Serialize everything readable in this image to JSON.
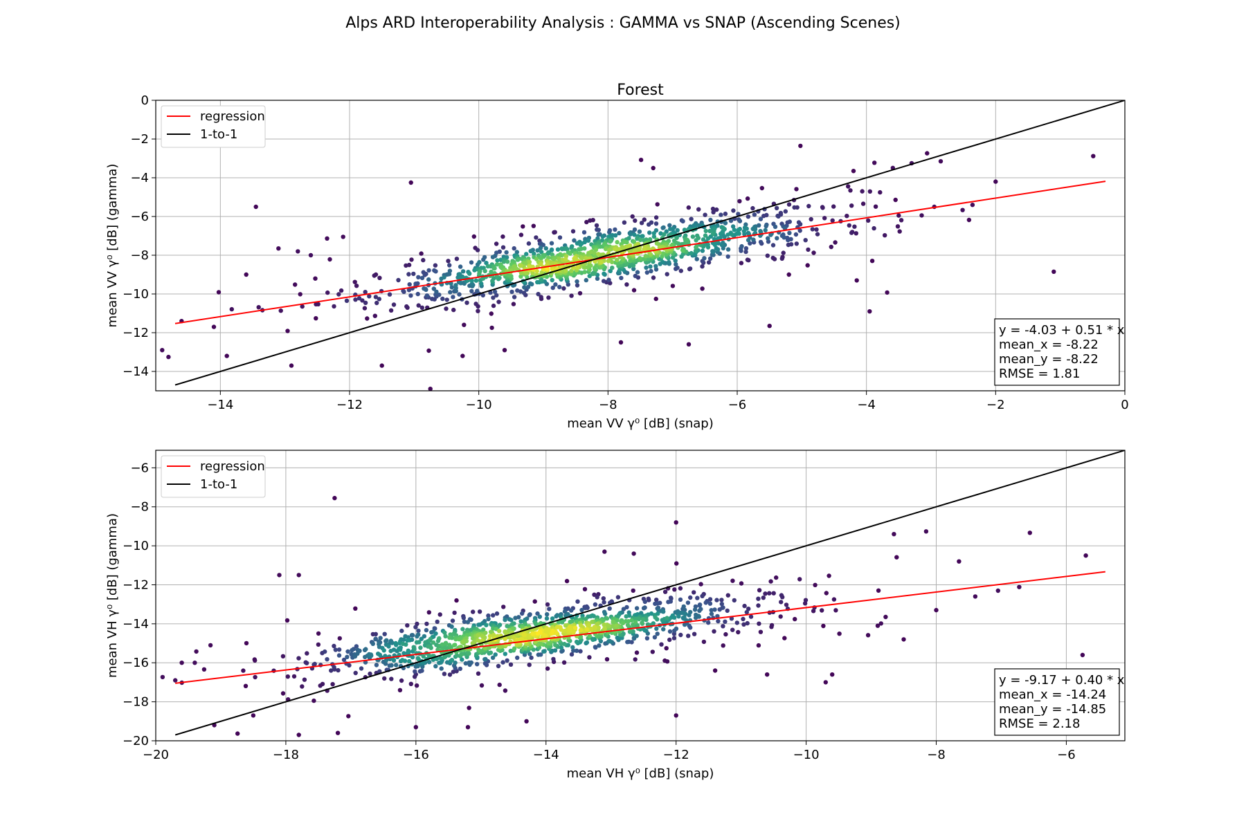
{
  "figure": {
    "title": "Alps ARD Interoperability Analysis : GAMMA vs SNAP (Ascending Scenes)"
  },
  "chart_data": [
    {
      "type": "scatter",
      "title": "Forest",
      "xlabel": "mean VV γ⁰ [dB] (snap)",
      "ylabel": "mean VV γ⁰ [dB] (gamma)",
      "xlim": [
        -15,
        0
      ],
      "ylim": [
        -15,
        0
      ],
      "xticks": [
        -14,
        -12,
        -10,
        -8,
        -6,
        -4,
        -2,
        0
      ],
      "yticks": [
        -14,
        -12,
        -10,
        -8,
        -6,
        -4,
        -2,
        0
      ],
      "xtick_labels": [
        "−14",
        "−12",
        "−10",
        "−8",
        "−6",
        "−4",
        "−2",
        "0"
      ],
      "ytick_labels": [
        "−14",
        "−12",
        "−10",
        "−8",
        "−6",
        "−4",
        "−2",
        "0"
      ],
      "grid": true,
      "legend": {
        "position": "top-left",
        "entries": [
          {
            "label": "regression",
            "color": "#ff0000"
          },
          {
            "label": "1-to-1",
            "color": "#000000"
          }
        ]
      },
      "regression": {
        "intercept": -4.03,
        "slope": 0.51,
        "x_range": [
          -14.7,
          -0.3
        ]
      },
      "one_to_one": {
        "x_range": [
          -14.7,
          0
        ]
      },
      "stats": {
        "position": "bottom-right",
        "lines": [
          "y = -4.03 + 0.51 * x",
          "mean_x = -8.22",
          "mean_y = -8.22",
          "RMSE = 1.81"
        ]
      },
      "density_center": [
        -8.1,
        -8.1
      ],
      "outliers": [
        [
          -14.9,
          -12.9
        ],
        [
          -14.6,
          -11.4
        ],
        [
          -14.1,
          -11.7
        ],
        [
          -13.6,
          -9.0
        ],
        [
          -13.45,
          -5.5
        ],
        [
          -13.1,
          -7.65
        ],
        [
          -12.8,
          -7.8
        ],
        [
          -12.6,
          -8.0
        ],
        [
          -12.1,
          -7.05
        ],
        [
          -11.05,
          -4.25
        ],
        [
          -10.75,
          -14.9
        ],
        [
          -10.25,
          -13.2
        ],
        [
          -7.8,
          -12.5
        ],
        [
          -7.3,
          -3.5
        ],
        [
          -6.75,
          -12.6
        ],
        [
          -5.5,
          -11.65
        ],
        [
          -5.2,
          -9.0
        ],
        [
          -4.15,
          -9.3
        ],
        [
          -3.95,
          -10.9
        ],
        [
          -3.3,
          -3.25
        ],
        [
          -2.85,
          -3.15
        ],
        [
          -2.95,
          -5.5
        ],
        [
          -2.0,
          -4.2
        ],
        [
          -1.1,
          -8.85
        ],
        [
          -3.5,
          -5.95
        ],
        [
          -4.2,
          -3.65
        ],
        [
          -9.6,
          -12.9
        ],
        [
          -12.9,
          -13.7
        ],
        [
          -13.9,
          -13.2
        ],
        [
          -11.5,
          -13.7
        ]
      ],
      "color_scale": [
        "#440154",
        "#3b528b",
        "#21918c",
        "#5ec962",
        "#fde725"
      ]
    },
    {
      "type": "scatter",
      "title": "",
      "xlabel": "mean VH γ⁰ [dB] (snap)",
      "ylabel": "mean VH γ⁰ [dB] (gamma)",
      "xlim": [
        -20,
        -5.1
      ],
      "ylim": [
        -20,
        -5.1
      ],
      "xticks": [
        -20,
        -18,
        -16,
        -14,
        -12,
        -10,
        -8,
        -6
      ],
      "yticks": [
        -20,
        -18,
        -16,
        -14,
        -12,
        -10,
        -8,
        -6
      ],
      "xtick_labels": [
        "−20",
        "−18",
        "−16",
        "−14",
        "−12",
        "−10",
        "−8",
        "−6"
      ],
      "ytick_labels": [
        "−20",
        "−18",
        "−16",
        "−14",
        "−12",
        "−10",
        "−8",
        "−6"
      ],
      "grid": true,
      "legend": {
        "position": "top-left",
        "entries": [
          {
            "label": "regression",
            "color": "#ff0000"
          },
          {
            "label": "1-to-1",
            "color": "#000000"
          }
        ]
      },
      "regression": {
        "intercept": -9.17,
        "slope": 0.4,
        "x_range": [
          -19.7,
          -5.4
        ]
      },
      "one_to_one": {
        "x_range": [
          -19.7,
          -5.1
        ]
      },
      "stats": {
        "position": "bottom-right",
        "lines": [
          "y = -9.17 + 0.40 * x",
          "mean_x = -14.24",
          "mean_y = -14.85",
          "RMSE = 2.18"
        ]
      },
      "density_center": [
        -14.2,
        -14.6
      ],
      "outliers": [
        [
          -17.25,
          -7.55
        ],
        [
          -12.0,
          -8.8
        ],
        [
          -18.1,
          -11.5
        ],
        [
          -17.8,
          -11.5
        ],
        [
          -13.1,
          -10.3
        ],
        [
          -12.65,
          -10.4
        ],
        [
          -8.65,
          -9.4
        ],
        [
          -7.65,
          -10.8
        ],
        [
          -5.7,
          -10.5
        ],
        [
          -5.75,
          -15.6
        ],
        [
          -7.05,
          -12.3
        ],
        [
          -8.0,
          -13.3
        ],
        [
          -17.2,
          -19.6
        ],
        [
          -17.8,
          -19.7
        ],
        [
          -19.6,
          -16.0
        ],
        [
          -19.4,
          -16.0
        ],
        [
          -19.1,
          -19.2
        ],
        [
          -15.2,
          -19.3
        ],
        [
          -16.0,
          -19.3
        ],
        [
          -12.0,
          -18.7
        ],
        [
          -9.7,
          -17.0
        ],
        [
          -9.6,
          -16.6
        ],
        [
          -8.5,
          -14.8
        ],
        [
          -8.9,
          -14.1
        ],
        [
          -10.6,
          -16.6
        ],
        [
          -11.4,
          -16.4
        ],
        [
          -7.4,
          -12.6
        ],
        [
          -14.3,
          -19.0
        ],
        [
          -18.5,
          -18.7
        ],
        [
          -19.7,
          -16.9
        ]
      ],
      "color_scale": [
        "#440154",
        "#3b528b",
        "#21918c",
        "#5ec962",
        "#fde725"
      ]
    }
  ]
}
